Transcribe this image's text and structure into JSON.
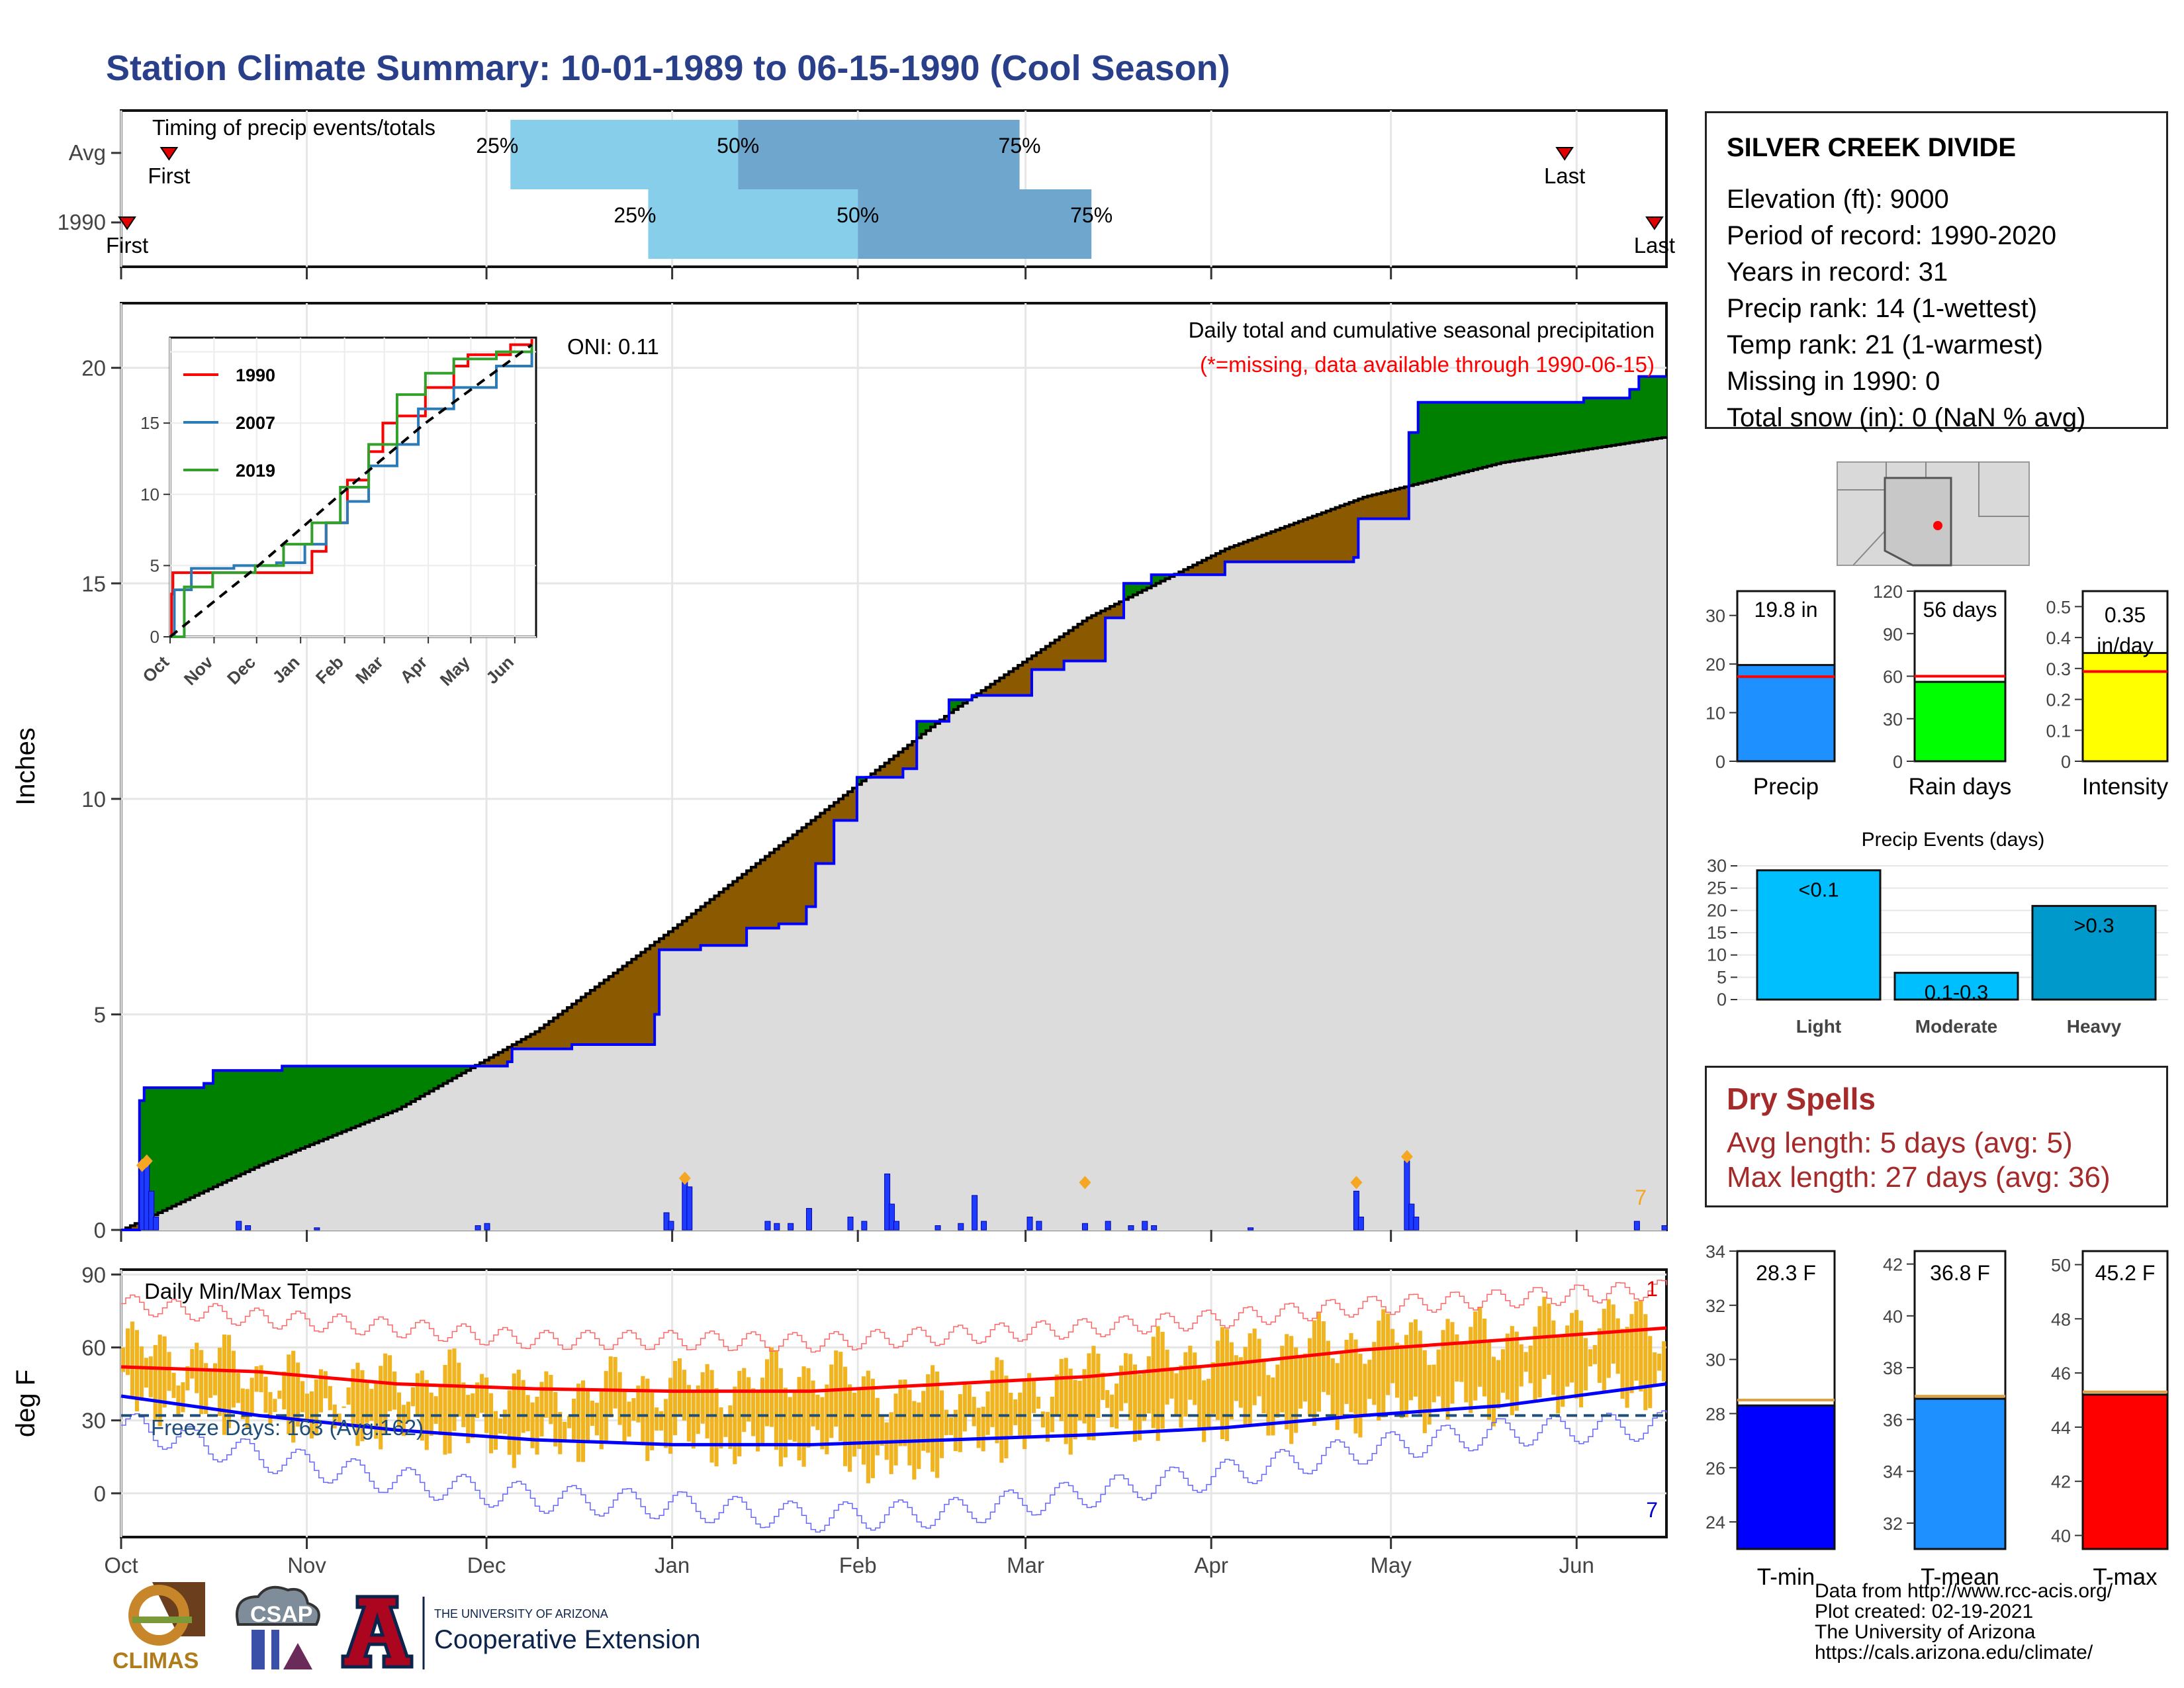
{
  "title": "Station Climate Summary: 10-01-1989 to 06-15-1990 (Cool Season)",
  "station": {
    "name": "SILVER CREEK DIVIDE",
    "lines": [
      "Elevation (ft): 9000",
      "Period of record: 1990-2020",
      "Years in record: 31",
      "Precip rank: 14 (1-wettest)",
      "Temp rank: 21 (1-warmest)",
      "Missing in 1990: 0",
      "Total snow (in): 0 (NaN % avg)"
    ]
  },
  "dry_spells": {
    "title": "Dry Spells",
    "lines": [
      "Avg length: 5 days (avg: 5)",
      "Max length: 27 days (avg: 36)"
    ]
  },
  "credits": [
    "Data from http://www.rcc-acis.org/",
    "Plot created: 02-19-2021",
    "The University of Arizona",
    "https://cals.arizona.edu/climate/"
  ],
  "logos": {
    "climas": "CLIMAS",
    "csap": "CSAP",
    "ua_small": "THE UNIVERSITY OF ARIZONA",
    "ua_big": "Cooperative Extension"
  },
  "colors": {
    "title": "#2a3f8a",
    "timing_light": "#87ceeb",
    "timing_dark": "#6ea6ce",
    "obs_line": "#0000ff",
    "avg_line": "#000000",
    "above_fill": "#008000",
    "below_fill": "#8b5a00",
    "climo_fill": "#dcdcdc",
    "temp_bar": "#f0b420",
    "tmax_avg": "#ff0000",
    "tmin_avg": "#0000ff",
    "freeze": "#1f4e79"
  },
  "chart_data": [
    {
      "type": "bar",
      "name": "timing",
      "title": "Timing of precip events/totals",
      "rows": [
        {
          "label": "Avg",
          "first": "10-09",
          "p25": "12-05",
          "p50": "01-12",
          "p75": "02-28",
          "last": "05-30",
          "first_label": "First",
          "last_label": "Last"
        },
        {
          "label": "1990",
          "first": "10-02",
          "p25": "12-28",
          "p50": "02-01",
          "p75": "03-12",
          "last": "06-14",
          "first_label": "First",
          "last_label": "Last"
        }
      ],
      "pct_labels": [
        "25%",
        "50%",
        "75%"
      ]
    },
    {
      "type": "area",
      "name": "precipitation",
      "title": "Daily total and cumulative seasonal precipitation",
      "subtitle": "(*=missing, data available through 1990-06-15)",
      "oni": "ONI: 0.11",
      "ylabel": "Inches",
      "ylim": [
        0,
        21.5
      ],
      "yticks": [
        0,
        5,
        10,
        15,
        20
      ],
      "xticks": [
        "Oct",
        "Nov",
        "Dec",
        "Jan",
        "Feb",
        "Mar",
        "Apr",
        "May",
        "Jun"
      ],
      "corner_count": "7",
      "observed_cumulative": [
        [
          0,
          0
        ],
        [
          3,
          0
        ],
        [
          4,
          3.0
        ],
        [
          5,
          3.3
        ],
        [
          18,
          3.4
        ],
        [
          20,
          3.7
        ],
        [
          30,
          3.7
        ],
        [
          35,
          3.8
        ],
        [
          55,
          3.8
        ],
        [
          72,
          3.8
        ],
        [
          83,
          3.8
        ],
        [
          84,
          3.9
        ],
        [
          85,
          4.2
        ],
        [
          98,
          4.3
        ],
        [
          100,
          4.3
        ],
        [
          110,
          4.3
        ],
        [
          116,
          5.0
        ],
        [
          117,
          6.5
        ],
        [
          126,
          6.6
        ],
        [
          134,
          6.6
        ],
        [
          136,
          7.0
        ],
        [
          143,
          7.1
        ],
        [
          149,
          7.5
        ],
        [
          151,
          8.5
        ],
        [
          154,
          8.5
        ],
        [
          155,
          9.5
        ],
        [
          160,
          10.5
        ],
        [
          170,
          10.7
        ],
        [
          173,
          11.8
        ],
        [
          180,
          12.3
        ],
        [
          185,
          12.4
        ],
        [
          198,
          13.0
        ],
        [
          205,
          13.2
        ],
        [
          214,
          14.2
        ],
        [
          218,
          15.0
        ],
        [
          224,
          15.2
        ],
        [
          240,
          15.5
        ],
        [
          257,
          15.5
        ],
        [
          268,
          15.6
        ],
        [
          269,
          16.5
        ],
        [
          278,
          16.5
        ],
        [
          280,
          18.5
        ],
        [
          282,
          19.2
        ],
        [
          318,
          19.3
        ],
        [
          328,
          19.5
        ],
        [
          330,
          19.8
        ],
        [
          336,
          19.8
        ]
      ],
      "average_cumulative": [
        [
          0,
          0
        ],
        [
          10,
          0.5
        ],
        [
          30,
          1.5
        ],
        [
          60,
          2.8
        ],
        [
          90,
          4.6
        ],
        [
          120,
          7.0
        ],
        [
          150,
          9.5
        ],
        [
          180,
          12.0
        ],
        [
          210,
          14.2
        ],
        [
          240,
          15.8
        ],
        [
          270,
          17.0
        ],
        [
          300,
          17.8
        ],
        [
          336,
          18.4
        ]
      ],
      "daily": [
        [
          4,
          1.5
        ],
        [
          5,
          1.6
        ],
        [
          6,
          0.9
        ],
        [
          7,
          0.3
        ],
        [
          25,
          0.2
        ],
        [
          27,
          0.1
        ],
        [
          42,
          0.05
        ],
        [
          77,
          0.1
        ],
        [
          79,
          0.15
        ],
        [
          118,
          0.4
        ],
        [
          119,
          0.2
        ],
        [
          122,
          1.2
        ],
        [
          123,
          1.0
        ],
        [
          140,
          0.2
        ],
        [
          142,
          0.15
        ],
        [
          145,
          0.15
        ],
        [
          149,
          0.5
        ],
        [
          158,
          0.3
        ],
        [
          161,
          0.2
        ],
        [
          166,
          1.3
        ],
        [
          167,
          0.6
        ],
        [
          168,
          0.2
        ],
        [
          177,
          0.1
        ],
        [
          182,
          0.15
        ],
        [
          185,
          0.8
        ],
        [
          187,
          0.2
        ],
        [
          197,
          0.3
        ],
        [
          199,
          0.2
        ],
        [
          209,
          0.15
        ],
        [
          214,
          0.2
        ],
        [
          219,
          0.1
        ],
        [
          222,
          0.2
        ],
        [
          224,
          0.1
        ],
        [
          245,
          0.05
        ],
        [
          268,
          0.9
        ],
        [
          269,
          0.3
        ],
        [
          279,
          1.6
        ],
        [
          280,
          0.6
        ],
        [
          281,
          0.3
        ],
        [
          329,
          0.2
        ],
        [
          335,
          0.1
        ]
      ],
      "daily_markers": [
        [
          4,
          1.5
        ],
        [
          5,
          1.6
        ],
        [
          122,
          1.2
        ],
        [
          209,
          1.1
        ],
        [
          268,
          1.1
        ],
        [
          279,
          1.7
        ]
      ]
    },
    {
      "type": "line",
      "name": "inset",
      "series": [
        {
          "name": "1990",
          "color": "#ff0000",
          "values": [
            [
              0,
              0
            ],
            [
              1,
              3.0
            ],
            [
              2,
              4.5
            ],
            [
              20,
              4.5
            ],
            [
              60,
              4.5
            ],
            [
              90,
              4.5
            ],
            [
              100,
              6.0
            ],
            [
              110,
              8.0
            ],
            [
              125,
              11.0
            ],
            [
              140,
              13.0
            ],
            [
              150,
              15.0
            ],
            [
              160,
              15.5
            ],
            [
              180,
              17.5
            ],
            [
              200,
              19.0
            ],
            [
              210,
              19.8
            ],
            [
              240,
              20.5
            ],
            [
              255,
              20.9
            ]
          ]
        },
        {
          "name": "2007",
          "color": "#2c7bb6",
          "values": [
            [
              0,
              0
            ],
            [
              3,
              3.3
            ],
            [
              15,
              4.8
            ],
            [
              45,
              5.0
            ],
            [
              75,
              5.2
            ],
            [
              95,
              6.5
            ],
            [
              110,
              8.0
            ],
            [
              125,
              9.5
            ],
            [
              140,
              12.0
            ],
            [
              160,
              13.5
            ],
            [
              175,
              16.0
            ],
            [
              200,
              17.5
            ],
            [
              230,
              19.0
            ],
            [
              255,
              20.2
            ]
          ]
        },
        {
          "name": "2019",
          "color": "#33a02c",
          "values": [
            [
              0,
              0
            ],
            [
              10,
              3.5
            ],
            [
              30,
              4.5
            ],
            [
              60,
              5.0
            ],
            [
              80,
              6.5
            ],
            [
              100,
              8.0
            ],
            [
              120,
              10.5
            ],
            [
              140,
              13.5
            ],
            [
              160,
              17.0
            ],
            [
              180,
              18.5
            ],
            [
              200,
              19.5
            ],
            [
              230,
              20.0
            ],
            [
              255,
              20.5
            ]
          ]
        },
        {
          "name": "avg",
          "dashed": true,
          "color": "#000000",
          "values": [
            [
              0,
              0
            ],
            [
              60,
              4.8
            ],
            [
              120,
              10.0
            ],
            [
              180,
              15.0
            ],
            [
              255,
              20.5
            ]
          ]
        }
      ],
      "ylim": [
        0,
        21
      ],
      "yticks": [
        0,
        5,
        10,
        15
      ],
      "xticks": [
        "Oct",
        "Nov",
        "Dec",
        "Jan",
        "Feb",
        "Mar",
        "Apr",
        "May",
        "Jun"
      ]
    },
    {
      "type": "bar",
      "name": "temperature",
      "title": "Daily Min/Max Temps",
      "ylabel": "deg F",
      "ylim": [
        -18,
        92
      ],
      "yticks": [
        0,
        30,
        60,
        90
      ],
      "freeze_label": "Freeze Days: 163 (Avg:162)",
      "freeze_line": 32,
      "corner_top": "1",
      "corner_bottom": "7",
      "tmax_avg": [
        [
          0,
          52
        ],
        [
          30,
          50
        ],
        [
          60,
          45
        ],
        [
          90,
          43
        ],
        [
          120,
          42
        ],
        [
          150,
          42
        ],
        [
          180,
          45
        ],
        [
          210,
          48
        ],
        [
          240,
          53
        ],
        [
          270,
          59
        ],
        [
          300,
          63
        ],
        [
          336,
          68
        ]
      ],
      "tmin_avg": [
        [
          0,
          40
        ],
        [
          30,
          32
        ],
        [
          60,
          26
        ],
        [
          90,
          22
        ],
        [
          120,
          20
        ],
        [
          150,
          20
        ],
        [
          180,
          22
        ],
        [
          210,
          24
        ],
        [
          240,
          27
        ],
        [
          270,
          32
        ],
        [
          300,
          36
        ],
        [
          336,
          45
        ]
      ],
      "tmax_record": [
        [
          0,
          78
        ],
        [
          30,
          72
        ],
        [
          60,
          68
        ],
        [
          90,
          63
        ],
        [
          120,
          63
        ],
        [
          150,
          62
        ],
        [
          180,
          65
        ],
        [
          210,
          68
        ],
        [
          240,
          72
        ],
        [
          270,
          77
        ],
        [
          300,
          80
        ],
        [
          336,
          84
        ]
      ],
      "tmin_record": [
        [
          0,
          28
        ],
        [
          30,
          15
        ],
        [
          60,
          5
        ],
        [
          90,
          -2
        ],
        [
          120,
          -5
        ],
        [
          150,
          -10
        ],
        [
          180,
          -8
        ],
        [
          210,
          0
        ],
        [
          240,
          8
        ],
        [
          270,
          18
        ],
        [
          300,
          25
        ],
        [
          336,
          28
        ]
      ],
      "tmax_obs_waves": [
        [
          0,
          60
        ],
        [
          20,
          55
        ],
        [
          40,
          45
        ],
        [
          70,
          48
        ],
        [
          90,
          40
        ],
        [
          110,
          45
        ],
        [
          130,
          45
        ],
        [
          150,
          50
        ],
        [
          170,
          40
        ],
        [
          180,
          42
        ],
        [
          200,
          45
        ],
        [
          220,
          55
        ],
        [
          250,
          60
        ],
        [
          280,
          65
        ],
        [
          300,
          65
        ],
        [
          320,
          72
        ],
        [
          336,
          68
        ]
      ],
      "tmin_obs_waves": [
        [
          0,
          40
        ],
        [
          20,
          35
        ],
        [
          40,
          30
        ],
        [
          70,
          25
        ],
        [
          90,
          20
        ],
        [
          110,
          25
        ],
        [
          130,
          20
        ],
        [
          150,
          20
        ],
        [
          170,
          10
        ],
        [
          180,
          20
        ],
        [
          200,
          25
        ],
        [
          220,
          30
        ],
        [
          250,
          30
        ],
        [
          280,
          35
        ],
        [
          300,
          38
        ],
        [
          320,
          45
        ],
        [
          336,
          42
        ]
      ],
      "xticks": [
        "Oct",
        "Nov",
        "Dec",
        "Jan",
        "Feb",
        "Mar",
        "Apr",
        "May",
        "Jun"
      ]
    },
    {
      "type": "bar",
      "name": "precip_total",
      "label": "Precip",
      "value_label": "19.8 in",
      "value": 19.8,
      "avg": 17.4,
      "ylim": [
        0,
        35
      ],
      "yticks": [
        0,
        10,
        20,
        30
      ],
      "color": "#1e90ff"
    },
    {
      "type": "bar",
      "name": "rain_days",
      "label": "Rain days",
      "value_label": "56 days",
      "value": 56,
      "avg": 60,
      "ylim": [
        0,
        120
      ],
      "yticks": [
        0,
        30,
        60,
        90,
        120
      ],
      "color": "#00ff00"
    },
    {
      "type": "bar",
      "name": "intensity",
      "label": "Intensity",
      "value_label": "0.35 in/day",
      "value": 0.35,
      "avg": 0.29,
      "ylim": [
        0,
        0.55
      ],
      "yticks": [
        0.0,
        0.1,
        0.2,
        0.3,
        0.4,
        0.5
      ],
      "color": "#ffff00"
    },
    {
      "type": "bar",
      "name": "precip_events",
      "title": "Precip Events (days)",
      "categories": [
        "Light",
        "Moderate",
        "Heavy"
      ],
      "bar_labels": [
        "<0.1",
        "0.1-0.3",
        ">0.3"
      ],
      "values": [
        29,
        6,
        21
      ],
      "colors": [
        "#00bfff",
        "#00bfff",
        "#0099cc"
      ],
      "ylim": [
        0,
        30
      ],
      "yticks": [
        0,
        5,
        10,
        15,
        20,
        25,
        30
      ]
    },
    {
      "type": "bar",
      "name": "tmin",
      "label": "T-min",
      "value_label": "28.3 F",
      "value": 28.3,
      "avg": 28.5,
      "ylim": [
        23,
        34
      ],
      "yticks": [
        24,
        26,
        28,
        30,
        32,
        34
      ],
      "color": "#0000ff"
    },
    {
      "type": "bar",
      "name": "tmean",
      "label": "T-mean",
      "value_label": "36.8 F",
      "value": 36.8,
      "avg": 36.9,
      "ylim": [
        31,
        42.5
      ],
      "yticks": [
        32,
        34,
        36,
        38,
        40,
        42
      ],
      "color": "#1e90ff"
    },
    {
      "type": "bar",
      "name": "tmax",
      "label": "T-max",
      "value_label": "45.2 F",
      "value": 45.2,
      "avg": 45.3,
      "ylim": [
        39.5,
        50.5
      ],
      "yticks": [
        40,
        42,
        44,
        46,
        48,
        50
      ],
      "color": "#ff0000"
    }
  ]
}
